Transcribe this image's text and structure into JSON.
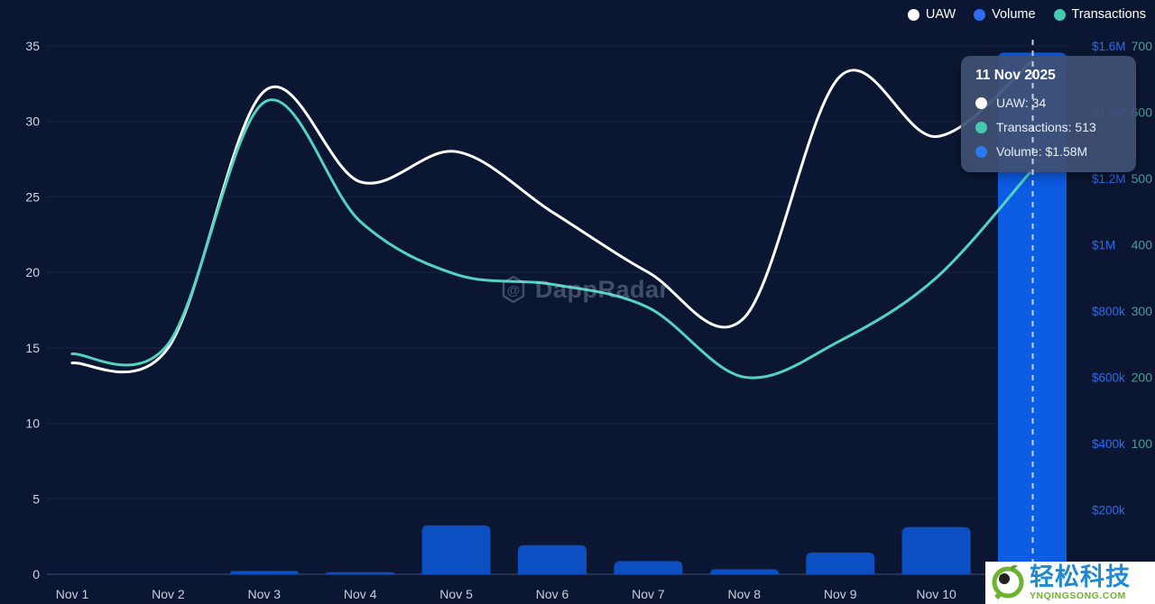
{
  "legend": {
    "items": [
      {
        "label": "UAW",
        "color": "#ffffff"
      },
      {
        "label": "Volume",
        "color": "#2e6bf0"
      },
      {
        "label": "Transactions",
        "color": "#45c9b3"
      }
    ]
  },
  "tooltip": {
    "date": "11 Nov 2025",
    "rows": [
      {
        "text": "UAW: 34",
        "color": "#ffffff"
      },
      {
        "text": "Transactions: 513",
        "color": "#43cbb2"
      },
      {
        "text": "Volume: $1.58M",
        "color": "#2979f2"
      }
    ]
  },
  "watermarks": {
    "center_logo": "dappradar-hexagon-logo",
    "center_text": "DappRadar",
    "corner_cn": "轻松科技",
    "corner_en": "YNQINGSONG.COM"
  },
  "chart_data": {
    "type": "combo-line-bar",
    "categories": [
      "Nov 1",
      "Nov 2",
      "Nov 3",
      "Nov 4",
      "Nov 5",
      "Nov 6",
      "Nov 7",
      "Nov 8",
      "Nov 9",
      "Nov 10",
      "Nov 11"
    ],
    "x_axis_labels": [
      "Nov 1",
      "Nov 2",
      "Nov 3",
      "Nov 4",
      "Nov 5",
      "Nov 6",
      "Nov 7",
      "Nov 8",
      "Nov 9",
      "Nov 10"
    ],
    "series": [
      {
        "name": "UAW",
        "kind": "line",
        "axis": "uaw",
        "color": "#ffffff",
        "values": [
          14,
          15,
          32,
          26,
          28,
          24,
          20,
          17,
          33,
          29,
          34
        ]
      },
      {
        "name": "Transactions",
        "kind": "line",
        "axis": "transactions",
        "color": "#52d4c1",
        "values": [
          235,
          250,
          615,
          435,
          355,
          340,
          305,
          200,
          255,
          350,
          513
        ]
      },
      {
        "name": "Volume",
        "kind": "bar",
        "axis": "volume",
        "color": "#0c4fc2",
        "active_color": "#0c5ce4",
        "values": [
          0,
          0,
          10000,
          6000,
          148000,
          88000,
          40000,
          15000,
          66000,
          143000,
          1580000
        ]
      }
    ],
    "highlighted_index": 10,
    "axes": {
      "uaw": {
        "side": "left",
        "ticks": [
          35,
          30,
          25,
          20,
          15,
          10,
          5,
          0
        ],
        "min": 0,
        "max": 35,
        "label_color": "#cdd5e2"
      },
      "volume": {
        "side": "right-inner",
        "ticks": [
          "$1.6M",
          "$1.4M",
          "$1.2M",
          "$1M",
          "$800k",
          "$600k",
          "$400k",
          "$200k"
        ],
        "min": 0,
        "max": 1600000,
        "label_color": "#2b6cf0"
      },
      "transactions": {
        "side": "right-outer",
        "ticks": [
          700,
          600,
          500,
          400,
          300,
          200,
          100
        ],
        "label_color": "#4d9e96"
      }
    },
    "grid": "horizontal-faint",
    "legend_position": "top-right"
  },
  "layout_colors": {
    "background": "#0b1732",
    "gridline": "rgba(140,160,200,0.10)",
    "baseline": "rgba(140,160,200,0.28)",
    "cursor_dash": "rgba(214,224,242,0.9)"
  }
}
